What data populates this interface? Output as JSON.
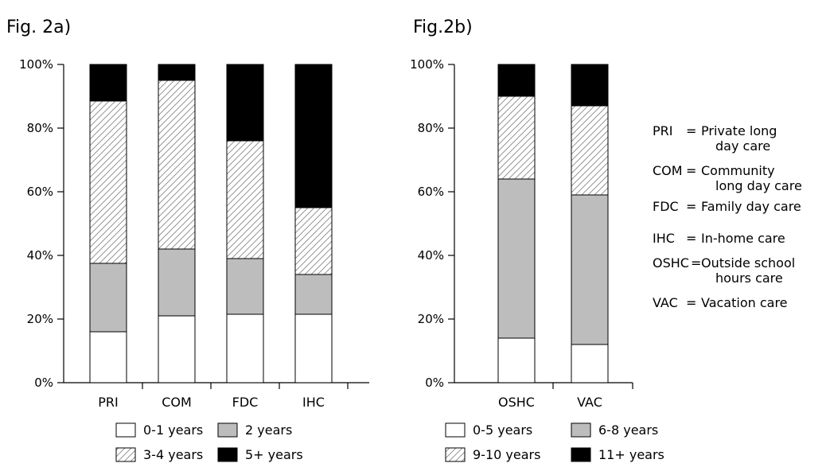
{
  "chart_data": [
    {
      "type": "bar",
      "stacked": true,
      "title": "Fig. 2a)",
      "categories": [
        "PRI",
        "COM",
        "FDC",
        "IHC"
      ],
      "ylim": [
        0,
        100
      ],
      "yticks": [
        "0%",
        "20%",
        "40%",
        "60%",
        "80%",
        "100%"
      ],
      "series": [
        {
          "name": "0-1 years",
          "pattern": "white",
          "values": [
            16,
            21,
            21.5,
            21.5
          ]
        },
        {
          "name": "2 years",
          "pattern": "gray",
          "values": [
            21.5,
            21,
            17.5,
            12.5
          ]
        },
        {
          "name": "3-4 years",
          "pattern": "hatch",
          "values": [
            51,
            53,
            37,
            21
          ]
        },
        {
          "name": "5+ years",
          "pattern": "black",
          "values": [
            11.5,
            5,
            24,
            45
          ]
        }
      ],
      "legend_position": "bottom"
    },
    {
      "type": "bar",
      "stacked": true,
      "title": "Fig.2b)",
      "categories": [
        "OSHC",
        "VAC"
      ],
      "ylim": [
        0,
        100
      ],
      "yticks": [
        "0%",
        "20%",
        "40%",
        "60%",
        "80%",
        "100%"
      ],
      "series": [
        {
          "name": "0-5 years",
          "pattern": "white",
          "values": [
            14,
            12
          ]
        },
        {
          "name": "6-8 years",
          "pattern": "gray",
          "values": [
            50,
            47
          ]
        },
        {
          "name": "9-10 years",
          "pattern": "hatch",
          "values": [
            26,
            28
          ]
        },
        {
          "name": "11+ years",
          "pattern": "black",
          "values": [
            10,
            13
          ]
        }
      ],
      "legend_position": "bottom"
    }
  ],
  "abbreviations": [
    {
      "code": "PRI",
      "sep": "=",
      "lines": [
        "Private long",
        "day care"
      ]
    },
    {
      "code": "COM",
      "sep": "=",
      "lines": [
        "Community",
        "long day care"
      ]
    },
    {
      "code": "FDC",
      "sep": "=",
      "lines": [
        "Family day care"
      ]
    },
    {
      "code": "IHC",
      "sep": "=",
      "lines": [
        "In-home care"
      ]
    },
    {
      "code": "OSHC",
      "sep": "=",
      "lines": [
        "Outside school",
        "hours care"
      ]
    },
    {
      "code": "VAC",
      "sep": "=",
      "lines": [
        "Vacation care"
      ]
    }
  ],
  "colors": {
    "white": "#ffffff",
    "gray": "#bdbdbd",
    "black": "#000000",
    "hatch_line": "#888888"
  }
}
